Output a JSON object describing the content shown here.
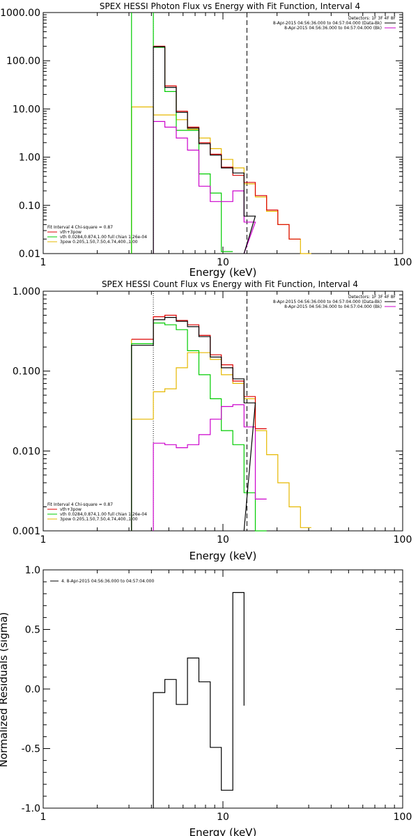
{
  "chart_data": [
    {
      "type": "line",
      "title": "SPEX HESSI Photon Flux vs Energy with Fit Function, Interval 4",
      "xlabel": "Energy (keV)",
      "ylabel": "",
      "xscale": "log",
      "yscale": "log",
      "xlim": [
        1,
        100
      ],
      "ylim": [
        0.01,
        1000
      ],
      "x_tick_labels": [
        "1",
        "10",
        "100"
      ],
      "y_tick_labels": [
        "0.01",
        "0.10",
        "1.00",
        "10.00",
        "100.00",
        "1000.00"
      ],
      "vlines": [
        {
          "x": 4.1,
          "style": "dotted",
          "color": "#000000"
        },
        {
          "x": 13.6,
          "style": "dashed",
          "color": "#000000"
        }
      ],
      "legend_top_right": [
        {
          "text": "Detectors: 1F 3F 4F 8F",
          "color": ""
        },
        {
          "text": "8-Apr-2015 04:56:36.000 to 04:57:04.000 (Data-Bk)",
          "color": "#000000"
        },
        {
          "text": "8-Apr-2015 04:56:36.000 to 04:57:04.000 (Bk)",
          "color": "#cc00cc"
        }
      ],
      "legend_bottom_left": [
        {
          "text": "Fit Interval 4   Chi-square = 0.87",
          "color": ""
        },
        {
          "text": "vth+3pow",
          "color": "#dd0000"
        },
        {
          "text": "vth 0.0284,0.874,1.00  full chian 1.26e-04",
          "color": "#00cc00"
        },
        {
          "text": "3pow 0.205,1.50,7.50,4.74,400.,1.00",
          "color": "#e6b800"
        }
      ],
      "edges": [
        4.1,
        4.75,
        5.5,
        6.35,
        7.35,
        8.5,
        9.8,
        11.35,
        13.1,
        15.15,
        17.5,
        20.2,
        23.35,
        27.0
      ],
      "series": [
        {
          "name": "vth+3pow",
          "color": "#dd0000",
          "values": [
            200,
            30,
            9.0,
            4.2,
            2.0,
            1.15,
            0.62,
            0.42,
            0.3,
            0.16,
            0.08,
            0.04,
            0.02
          ]
        },
        {
          "name": "",
          "color": "#000000",
          "values": [
            195,
            28,
            8.5,
            4.0,
            1.9,
            1.1,
            0.6,
            0.47,
            0.06
          ]
        },
        {
          "name": "vth",
          "color": "#00cc00",
          "values": [
            190,
            23,
            3.6,
            3.6,
            0.45,
            0.18,
            0.011
          ]
        },
        {
          "name": "3pow",
          "color": "#e6b800",
          "values": [
            11,
            7.5,
            7.5,
            6.0,
            3.8,
            2.5,
            1.5,
            0.9,
            0.6,
            0.28,
            0.15,
            0.075,
            0.04,
            0.02,
            0.01
          ]
        },
        {
          "name": "",
          "color": "#cc00cc",
          "values": [
            5.5,
            4.2,
            2.5,
            1.4,
            0.25,
            0.12,
            0.12,
            0.2,
            0.045
          ]
        }
      ],
      "yellow_edges": [
        3.1,
        4.1,
        4.75,
        5.5,
        6.35,
        7.35,
        8.5,
        9.8,
        11.35,
        13.1,
        15.15,
        17.5,
        20.2,
        23.35,
        27.0,
        31.0,
        35.5
      ],
      "green_edges": [
        4.1,
        4.75,
        5.5,
        6.35,
        7.35,
        8.5,
        9.8,
        11.35
      ],
      "green_left_wall_x": 3.1
    },
    {
      "type": "line",
      "title": "SPEX HESSI Count Flux vs Energy with Fit Function, Interval 4",
      "xlabel": "Energy (keV)",
      "ylabel": "",
      "xscale": "log",
      "yscale": "log",
      "xlim": [
        1,
        100
      ],
      "ylim": [
        0.001,
        1
      ],
      "x_tick_labels": [
        "1",
        "10",
        "100"
      ],
      "y_tick_labels": [
        "0.001",
        "0.010",
        "0.100",
        "1.000"
      ],
      "vlines": [
        {
          "x": 4.1,
          "style": "dotted",
          "color": "#000000"
        },
        {
          "x": 13.6,
          "style": "dashed",
          "color": "#000000"
        }
      ],
      "legend_top_right": [
        {
          "text": "Detectors: 1F 3F 4F 8F",
          "color": ""
        },
        {
          "text": "8-Apr-2015 04:56:36.000 to 04:57:04.000 (Data-Bk)",
          "color": "#000000"
        },
        {
          "text": "8-Apr-2015 04:56:36.000 to 04:57:04.000 (Bk)",
          "color": "#cc00cc"
        }
      ],
      "legend_bottom_left": [
        {
          "text": "Fit Interval 4   Chi-square = 0.87",
          "color": ""
        },
        {
          "text": "vth+3pow",
          "color": "#dd0000"
        },
        {
          "text": "vth 0.0284,0.874,1.00  full chian 1.26e-04",
          "color": "#00cc00"
        },
        {
          "text": "3pow 0.205,1.50,7.50,4.74,400.,1.00",
          "color": "#e6b800"
        }
      ]
    },
    {
      "type": "line",
      "title": "",
      "xlabel": "Energy (keV)",
      "ylabel": "Normalized Residuals (sigma)",
      "xscale": "log",
      "xlim": [
        1,
        100
      ],
      "ylim": [
        -1,
        1
      ],
      "x_tick_labels": [
        "1",
        "10",
        "100"
      ],
      "y_tick_labels": [
        "-1.0",
        "-0.5",
        "0.0",
        "0.5",
        "1.0"
      ],
      "legend": [
        {
          "text": "4. 8-Apr-2015 04:56:36.000 to 04:57:04.000",
          "color": "#000000"
        }
      ],
      "edges": [
        4.1,
        4.75,
        5.5,
        6.35,
        7.35,
        8.5,
        9.8,
        11.35,
        13.1
      ],
      "residuals": [
        -0.03,
        0.08,
        -0.13,
        0.26,
        0.06,
        -0.49,
        -0.85,
        0.81,
        -0.14
      ]
    }
  ]
}
